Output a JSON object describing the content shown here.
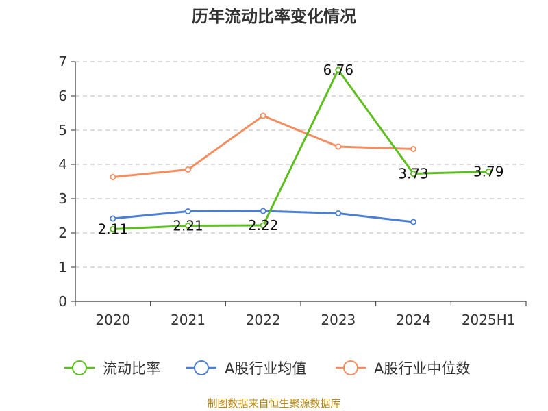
{
  "chart_data": {
    "type": "line",
    "title": "历年流动比率变化情况",
    "categories": [
      "2020",
      "2021",
      "2022",
      "2023",
      "2024",
      "2025H1"
    ],
    "ylim": [
      0,
      7
    ],
    "yticks": [
      0,
      1,
      2,
      3,
      4,
      5,
      6,
      7
    ],
    "grid": true,
    "legend_position": "bottom",
    "series": [
      {
        "name": "流动比率",
        "color": "#5cbf1e",
        "values": [
          2.11,
          2.21,
          2.22,
          6.76,
          3.73,
          3.79
        ],
        "show_labels": true
      },
      {
        "name": "A股行业均值",
        "color": "#4a7fd4",
        "values": [
          2.42,
          2.63,
          2.64,
          2.57,
          2.32,
          null
        ],
        "show_labels": false
      },
      {
        "name": "A股行业中位数",
        "color": "#f58d5e",
        "values": [
          3.63,
          3.85,
          5.42,
          4.52,
          4.45,
          null
        ],
        "show_labels": false
      }
    ],
    "source": "制图数据来自恒生聚源数据库"
  }
}
